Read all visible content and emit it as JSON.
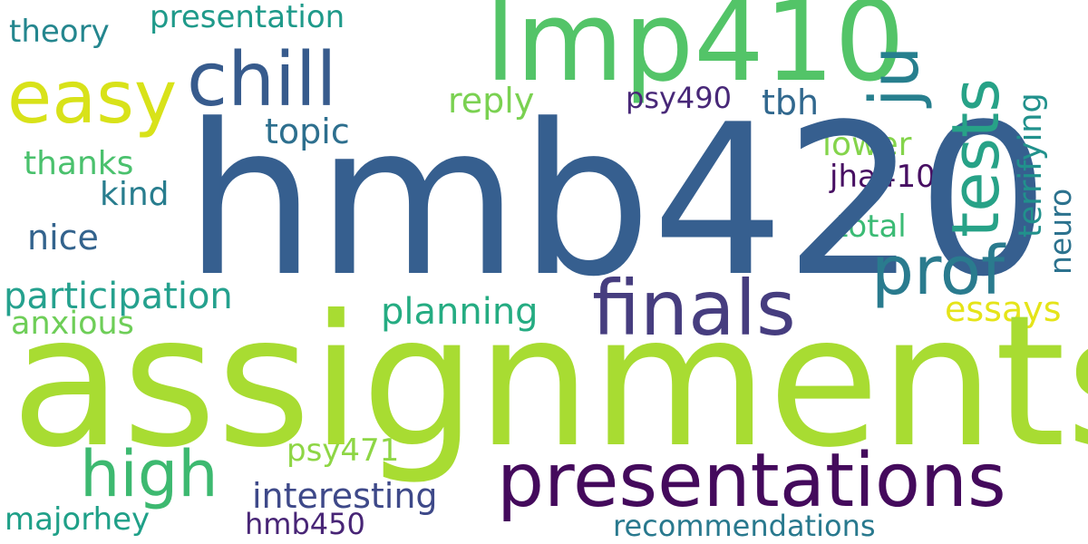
{
  "word_cloud": {
    "background": "#ffffff",
    "words": {
      "hmb420": {
        "text": "hmb420",
        "color": "#365f8f"
      },
      "assignments": {
        "text": "assignments",
        "color": "#a8dc32"
      },
      "lmp410": {
        "text": "lmp410",
        "color": "#53c468"
      },
      "chill": {
        "text": "chill",
        "color": "#375b8d"
      },
      "easy": {
        "text": "easy",
        "color": "#d8e219"
      },
      "finals": {
        "text": "finals",
        "color": "#463d7f"
      },
      "prof": {
        "text": "prof",
        "color": "#2a7b8e"
      },
      "presentations": {
        "text": "presentations",
        "color": "#440a5c"
      },
      "high": {
        "text": "high",
        "color": "#3db970"
      },
      "tests": {
        "text": "tests",
        "color": "#27a287"
      },
      "ju": {
        "text": "ju",
        "color": "#277f8e"
      },
      "terrifying": {
        "text": "terrifying",
        "color": "#21918c"
      },
      "neuro": {
        "text": "neuro",
        "color": "#2c728e"
      },
      "presentation": {
        "text": "presentation",
        "color": "#1f9a8a"
      },
      "theory": {
        "text": "theory",
        "color": "#24868e"
      },
      "reply": {
        "text": "reply",
        "color": "#7ad151"
      },
      "psy490": {
        "text": "psy490",
        "color": "#482878"
      },
      "tbh": {
        "text": "tbh",
        "color": "#31688e"
      },
      "topic": {
        "text": "topic",
        "color": "#2d6f8e"
      },
      "thanks": {
        "text": "thanks",
        "color": "#4ac16d"
      },
      "lower": {
        "text": "lower",
        "color": "#84d44b"
      },
      "jha410": {
        "text": "jha410",
        "color": "#470f62"
      },
      "kind": {
        "text": "kind",
        "color": "#287d8e"
      },
      "nice": {
        "text": "nice",
        "color": "#33638d"
      },
      "total": {
        "text": "total",
        "color": "#3bbb75"
      },
      "participation": {
        "text": "participation",
        "color": "#25a18e"
      },
      "planning": {
        "text": "planning",
        "color": "#25ac82"
      },
      "essays": {
        "text": "essays",
        "color": "#e5e419"
      },
      "anxious": {
        "text": "anxious",
        "color": "#6ece58"
      },
      "psy471": {
        "text": "psy471",
        "color": "#8ed645"
      },
      "interesting": {
        "text": "interesting",
        "color": "#3e4989"
      },
      "majorhey": {
        "text": "majorhey",
        "color": "#1fa088"
      },
      "hmb450": {
        "text": "hmb450",
        "color": "#482576"
      },
      "recommendations": {
        "text": "recommendations",
        "color": "#29798e"
      }
    }
  }
}
